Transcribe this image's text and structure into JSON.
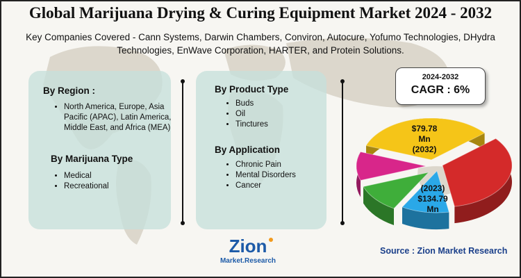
{
  "header": {
    "title": "Global Marijuana Drying & Curing Equipment Market 2024 - 2032",
    "companies": "Key Companies Covered - Cann Systems, Darwin Chambers, Conviron, Autocure, Yofumo Technologies, DHydra Technologies, EnWave Corporation, HARTER, and Protein Solutions."
  },
  "segments": {
    "region": {
      "title": "By Region :",
      "items": [
        "North America, Europe, Asia Pacific (APAC), Latin America, Middle East, and Africa (MEA)"
      ]
    },
    "marijuana_type": {
      "title": "By Marijuana Type",
      "items": [
        "Medical",
        "Recreational"
      ]
    },
    "product_type": {
      "title": "By Product Type",
      "items": [
        "Buds",
        "Oil",
        "Tinctures"
      ]
    },
    "application": {
      "title": "By  Application",
      "items": [
        "Chronic Pain",
        "Mental Disorders",
        "Cancer"
      ]
    }
  },
  "cagr": {
    "period": "2024-2032",
    "label": "CAGR : 6%"
  },
  "chart_data": {
    "type": "pie",
    "annotations": [
      {
        "line1": "$79.78",
        "line2": "Mn",
        "line3": "(2032)"
      },
      {
        "line1": "(2023)",
        "line2": "$134.79",
        "line3": "Mn"
      }
    ],
    "slices": [
      {
        "color": "#f5c518"
      },
      {
        "color": "#d42a2a"
      },
      {
        "color": "#2aa8e8"
      },
      {
        "color": "#3fae3a"
      },
      {
        "color": "#d8268a"
      }
    ]
  },
  "logo": {
    "brand": "Zion",
    "sub": "Market.Research"
  },
  "source": "Source : Zion Market Research",
  "colors": {
    "panel": "#c7e0db",
    "source_text": "#1a3f8a",
    "map": "#d9d4c9"
  }
}
